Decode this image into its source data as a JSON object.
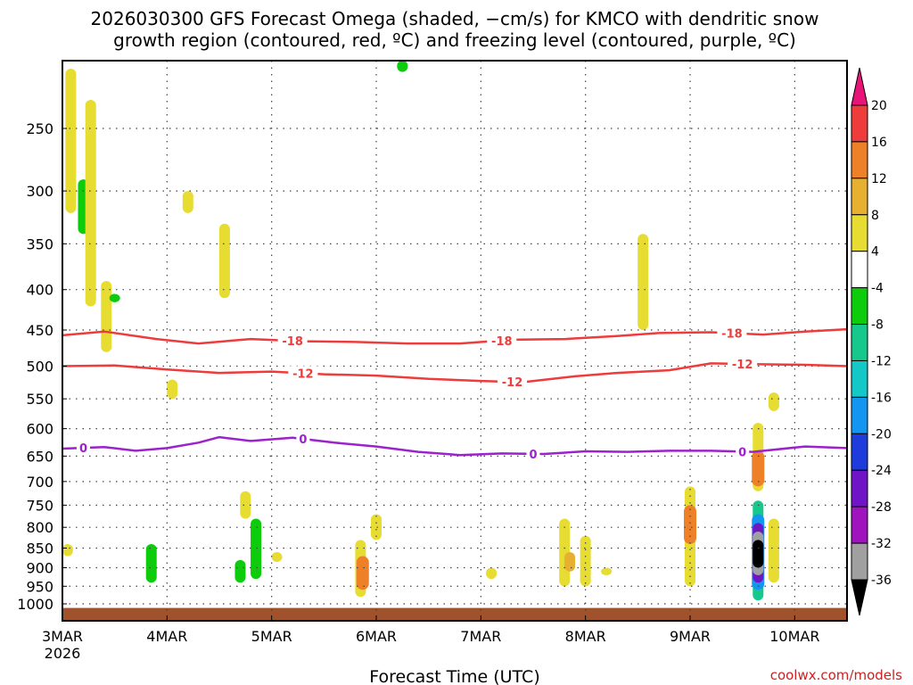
{
  "chart_data": {
    "type": "heatmap",
    "title_line1": "2026030300 GFS Forecast Omega (shaded, −cm/s) for KMCO with dendritic snow",
    "title_line2": "growth region (contoured, red, ºC) and freezing level (contoured, purple, ºC)",
    "xlabel": "Forecast Time (UTC)",
    "credit": "coolwx.com/models",
    "x_start_label": "3MAR",
    "x_start_year": "2026",
    "x_ticks": [
      "3MAR",
      "4MAR",
      "5MAR",
      "6MAR",
      "7MAR",
      "8MAR",
      "9MAR",
      "10MAR"
    ],
    "x_tick_days": [
      0,
      1,
      2,
      3,
      4,
      5,
      6,
      7
    ],
    "x_range_days": [
      0,
      7.5
    ],
    "y_ticks": [
      250,
      300,
      350,
      400,
      450,
      500,
      550,
      600,
      650,
      700,
      750,
      800,
      850,
      900,
      950,
      1000
    ],
    "y_range_hpa": [
      200,
      1025
    ],
    "colorbar": {
      "labels": [
        "20",
        "16",
        "12",
        "8",
        "4",
        "-4",
        "-8",
        "-12",
        "-16",
        "-20",
        "-24",
        "-28",
        "-32",
        "-36"
      ],
      "levels": [
        20,
        16,
        12,
        8,
        4,
        -4,
        -8,
        -12,
        -16,
        -20,
        -24,
        -28,
        -32,
        -36
      ],
      "colors": {
        "gt20": "#e8147a",
        "16_20": "#ee3c3c",
        "12_16": "#ee8028",
        "8_12": "#e8b030",
        "4_8": "#e6dc32",
        "m4_4": "#ffffff",
        "m8_m4": "#0ccc0c",
        "m12_m8": "#16c88c",
        "m16_m12": "#14c8c8",
        "m20_m16": "#1496f0",
        "m24_m20": "#1e3cdc",
        "m28_m24": "#7014c8",
        "m32_m28": "#a014c0",
        "m36_m32": "#a0a0a0",
        "lt36": "#000000"
      }
    },
    "contours": [
      {
        "name": "dgz-minus18",
        "label": "-18",
        "color": "#ee3c3c",
        "points": [
          [
            0,
            457
          ],
          [
            0.4,
            452
          ],
          [
            0.9,
            462
          ],
          [
            1.3,
            468
          ],
          [
            1.8,
            462
          ],
          [
            2.3,
            465
          ],
          [
            2.8,
            466
          ],
          [
            3.3,
            468
          ],
          [
            3.8,
            468
          ],
          [
            4.3,
            463
          ],
          [
            4.8,
            462
          ],
          [
            5.3,
            458
          ],
          [
            5.7,
            454
          ],
          [
            6.2,
            453
          ],
          [
            6.7,
            456
          ],
          [
            7.1,
            452
          ],
          [
            7.5,
            449
          ]
        ],
        "label_days": [
          2.2,
          4.2,
          6.4
        ]
      },
      {
        "name": "dgz-minus12",
        "label": "-12",
        "color": "#ee3c3c",
        "points": [
          [
            0,
            500
          ],
          [
            0.5,
            499
          ],
          [
            1.0,
            505
          ],
          [
            1.5,
            510
          ],
          [
            2.0,
            508
          ],
          [
            2.5,
            512
          ],
          [
            3.0,
            514
          ],
          [
            3.5,
            519
          ],
          [
            4.0,
            522
          ],
          [
            4.4,
            524
          ],
          [
            4.9,
            515
          ],
          [
            5.3,
            510
          ],
          [
            5.8,
            506
          ],
          [
            6.2,
            496
          ],
          [
            6.6,
            497
          ],
          [
            7.1,
            498
          ],
          [
            7.5,
            500
          ]
        ],
        "label_days": [
          2.3,
          4.3,
          6.5
        ]
      },
      {
        "name": "freezing-level",
        "label": "0",
        "color": "#9b22cc",
        "points": [
          [
            0,
            636
          ],
          [
            0.4,
            633
          ],
          [
            0.7,
            640
          ],
          [
            1.0,
            635
          ],
          [
            1.3,
            625
          ],
          [
            1.5,
            615
          ],
          [
            1.8,
            622
          ],
          [
            2.2,
            616
          ],
          [
            2.6,
            625
          ],
          [
            3.0,
            632
          ],
          [
            3.4,
            642
          ],
          [
            3.8,
            648
          ],
          [
            4.2,
            645
          ],
          [
            4.6,
            646
          ],
          [
            5.0,
            641
          ],
          [
            5.4,
            642
          ],
          [
            5.8,
            640
          ],
          [
            6.2,
            640
          ],
          [
            6.6,
            642
          ],
          [
            7.1,
            632
          ],
          [
            7.5,
            635
          ]
        ],
        "label_days": [
          0.2,
          2.3,
          4.5,
          6.5
        ]
      }
    ],
    "shaded_regions": [
      {
        "t": 0.08,
        "p0": 210,
        "p1": 320,
        "v": 6
      },
      {
        "t": 0.2,
        "p0": 290,
        "p1": 340,
        "v": -6
      },
      {
        "t": 0.27,
        "p0": 230,
        "p1": 420,
        "v": 6
      },
      {
        "t": 0.42,
        "p0": 390,
        "p1": 480,
        "v": 6
      },
      {
        "t": 0.5,
        "p0": 405,
        "p1": 415,
        "v": -6
      },
      {
        "t": 0.05,
        "p0": 840,
        "p1": 870,
        "v": 6
      },
      {
        "t": 0.85,
        "p0": 840,
        "p1": 940,
        "v": -6
      },
      {
        "t": 1.2,
        "p0": 300,
        "p1": 320,
        "v": 6
      },
      {
        "t": 1.05,
        "p0": 520,
        "p1": 550,
        "v": 6
      },
      {
        "t": 1.55,
        "p0": 330,
        "p1": 410,
        "v": 6
      },
      {
        "t": 1.85,
        "p0": 780,
        "p1": 930,
        "v": -6
      },
      {
        "t": 1.7,
        "p0": 880,
        "p1": 940,
        "v": -6
      },
      {
        "t": 1.75,
        "p0": 720,
        "p1": 780,
        "v": 6
      },
      {
        "t": 2.05,
        "p0": 860,
        "p1": 885,
        "v": 6
      },
      {
        "t": 2.85,
        "p0": 830,
        "p1": 980,
        "v": 6
      },
      {
        "t": 2.87,
        "p0": 870,
        "p1": 960,
        "v": 12
      },
      {
        "t": 3.0,
        "p0": 770,
        "p1": 830,
        "v": 6
      },
      {
        "t": 4.8,
        "p0": 780,
        "p1": 950,
        "v": 6
      },
      {
        "t": 4.85,
        "p0": 860,
        "p1": 910,
        "v": 10
      },
      {
        "t": 4.1,
        "p0": 900,
        "p1": 930,
        "v": 6
      },
      {
        "t": 5.0,
        "p0": 820,
        "p1": 950,
        "v": 6
      },
      {
        "t": 5.55,
        "p0": 340,
        "p1": 450,
        "v": 6
      },
      {
        "t": 5.2,
        "p0": 900,
        "p1": 920,
        "v": 6
      },
      {
        "t": 6.0,
        "p0": 710,
        "p1": 950,
        "v": 6
      },
      {
        "t": 6.0,
        "p0": 750,
        "p1": 840,
        "v": 12
      },
      {
        "t": 6.65,
        "p0": 590,
        "p1": 720,
        "v": 6
      },
      {
        "t": 6.65,
        "p0": 640,
        "p1": 710,
        "v": 12
      },
      {
        "t": 6.65,
        "p0": 740,
        "p1": 990,
        "v": -10
      },
      {
        "t": 6.65,
        "p0": 770,
        "p1": 960,
        "v": -16
      },
      {
        "t": 6.65,
        "p0": 790,
        "p1": 940,
        "v": -26
      },
      {
        "t": 6.65,
        "p0": 810,
        "p1": 920,
        "v": -34
      },
      {
        "t": 6.65,
        "p0": 830,
        "p1": 900,
        "v": -40
      },
      {
        "t": 6.8,
        "p0": 780,
        "p1": 940,
        "v": 6
      },
      {
        "t": 6.8,
        "p0": 540,
        "p1": 570,
        "v": 6
      },
      {
        "t": 3.25,
        "p0": 205,
        "p1": 212,
        "v": -6
      }
    ],
    "surface_band": {
      "p_top": 1012,
      "color": "#a0522d"
    }
  }
}
